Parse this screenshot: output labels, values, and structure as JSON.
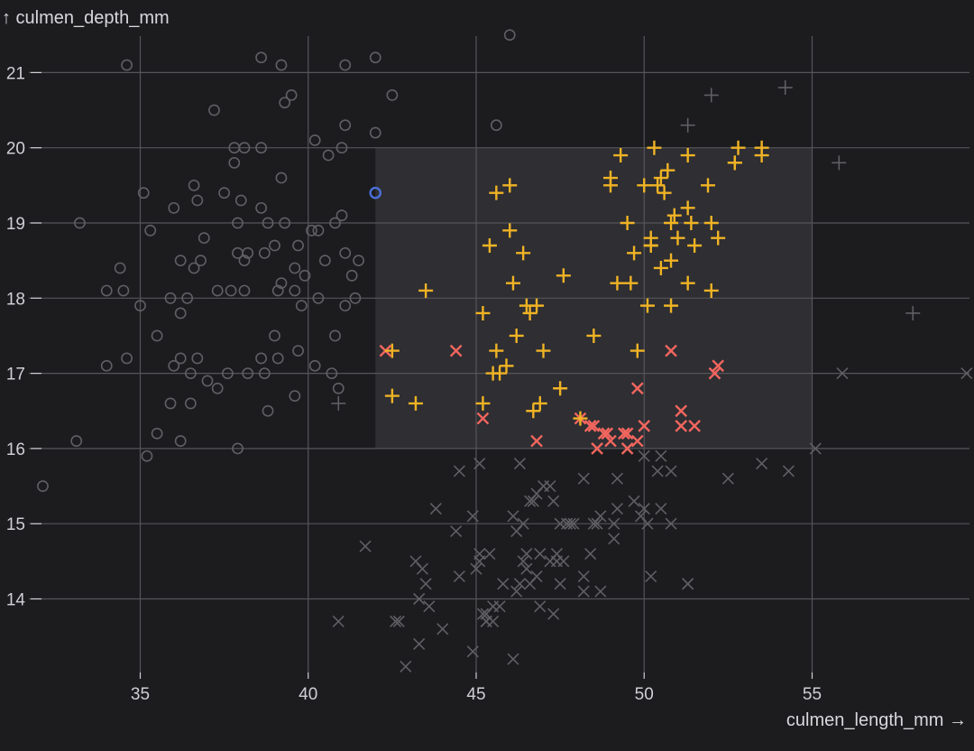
{
  "colors": {
    "background": "#1c1c1f",
    "grid": "#55555a",
    "tick": "#cfcfd4",
    "selection": "#2e2e33",
    "dim_mark": "#5f5f64",
    "Adelie": "#4a6fd6",
    "Gentoo": "#f0b324",
    "Chinstrap": "#f2665e"
  },
  "chart_data": {
    "type": "scatter",
    "xlabel": "culmen_length_mm →",
    "ylabel": "↑ culmen_depth_mm",
    "xlim": [
      31.8,
      60
    ],
    "ylim": [
      13,
      21.5
    ],
    "x_ticks": [
      35,
      40,
      45,
      50,
      55
    ],
    "y_ticks": [
      14,
      15,
      16,
      17,
      18,
      19,
      20,
      21
    ],
    "grid": true,
    "brush": {
      "x": [
        42,
        55
      ],
      "y": [
        16,
        20
      ]
    },
    "symbol_by": {
      "Adelie": "circle",
      "Gentoo": "plus",
      "Chinstrap": "cross"
    },
    "series": [
      {
        "symbol": "circle",
        "points": [
          [
            46.0,
            21.5
          ],
          [
            34.6,
            21.1
          ],
          [
            38.6,
            21.2
          ],
          [
            39.2,
            21.1
          ],
          [
            41.1,
            21.1
          ],
          [
            42.0,
            21.2
          ],
          [
            39.5,
            20.7
          ],
          [
            42.5,
            20.7
          ],
          [
            39.3,
            20.6
          ],
          [
            37.2,
            20.5
          ],
          [
            40.6,
            19.9
          ],
          [
            41.1,
            20.3
          ],
          [
            45.6,
            20.3
          ],
          [
            42.0,
            20.2
          ],
          [
            40.2,
            20.1
          ],
          [
            37.8,
            20.0
          ],
          [
            38.1,
            20.0
          ],
          [
            38.6,
            20.0
          ],
          [
            41.0,
            20.0
          ],
          [
            37.8,
            19.8
          ],
          [
            35.1,
            19.4
          ],
          [
            36.6,
            19.5
          ],
          [
            39.2,
            19.6
          ],
          [
            42.0,
            19.4
          ],
          [
            37.5,
            19.4
          ],
          [
            36.7,
            19.3
          ],
          [
            38.0,
            19.3
          ],
          [
            36.0,
            19.2
          ],
          [
            38.6,
            19.2
          ],
          [
            33.2,
            19.0
          ],
          [
            35.3,
            18.9
          ],
          [
            39.3,
            19.0
          ],
          [
            40.3,
            18.9
          ],
          [
            37.9,
            19.0
          ],
          [
            38.8,
            19.0
          ],
          [
            40.8,
            19.0
          ],
          [
            41.0,
            19.1
          ],
          [
            40.1,
            18.9
          ],
          [
            36.2,
            18.5
          ],
          [
            36.8,
            18.5
          ],
          [
            36.9,
            18.8
          ],
          [
            38.2,
            18.6
          ],
          [
            39.0,
            18.7
          ],
          [
            39.7,
            18.7
          ],
          [
            34.4,
            18.4
          ],
          [
            36.6,
            18.4
          ],
          [
            38.1,
            18.5
          ],
          [
            38.7,
            18.6
          ],
          [
            39.6,
            18.4
          ],
          [
            40.5,
            18.5
          ],
          [
            41.1,
            18.6
          ],
          [
            35.9,
            18.0
          ],
          [
            36.2,
            17.8
          ],
          [
            37.3,
            18.1
          ],
          [
            38.1,
            18.1
          ],
          [
            39.6,
            18.1
          ],
          [
            41.4,
            18.0
          ],
          [
            34.0,
            18.1
          ],
          [
            34.5,
            18.1
          ],
          [
            36.4,
            18.0
          ],
          [
            37.7,
            18.1
          ],
          [
            39.8,
            17.9
          ],
          [
            40.3,
            18.0
          ],
          [
            41.1,
            17.9
          ],
          [
            32.1,
            15.5
          ],
          [
            33.1,
            16.1
          ],
          [
            34.6,
            17.2
          ],
          [
            34.0,
            17.1
          ],
          [
            35.0,
            17.9
          ],
          [
            35.5,
            17.5
          ],
          [
            36.0,
            17.1
          ],
          [
            36.2,
            17.2
          ],
          [
            36.5,
            17.0
          ],
          [
            37.0,
            16.9
          ],
          [
            37.3,
            16.8
          ],
          [
            36.7,
            17.2
          ],
          [
            38.2,
            17.0
          ],
          [
            38.7,
            17.0
          ],
          [
            39.1,
            17.2
          ],
          [
            39.7,
            17.3
          ],
          [
            40.2,
            17.1
          ],
          [
            40.7,
            17.0
          ],
          [
            40.9,
            16.8
          ],
          [
            35.9,
            16.6
          ],
          [
            36.5,
            16.6
          ],
          [
            37.6,
            17.0
          ],
          [
            39.6,
            16.7
          ],
          [
            35.5,
            16.2
          ],
          [
            36.2,
            16.1
          ],
          [
            35.2,
            15.9
          ],
          [
            37.9,
            16.0
          ],
          [
            38.8,
            16.5
          ],
          [
            38.6,
            17.2
          ],
          [
            39.0,
            17.5
          ],
          [
            40.8,
            17.5
          ],
          [
            41.3,
            18.3
          ],
          [
            39.2,
            18.2
          ],
          [
            37.9,
            18.6
          ],
          [
            41.5,
            18.5
          ],
          [
            39.9,
            18.3
          ],
          [
            39.1,
            18.1
          ]
        ]
      },
      {
        "symbol": "cross",
        "points": [
          [
            42.3,
            17.3
          ],
          [
            44.4,
            17.3
          ],
          [
            45.2,
            16.4
          ],
          [
            46.8,
            16.1
          ],
          [
            48.1,
            16.4
          ],
          [
            48.5,
            16.3
          ],
          [
            48.6,
            16.0
          ],
          [
            48.9,
            16.2
          ],
          [
            49.0,
            16.1
          ],
          [
            49.4,
            16.2
          ],
          [
            49.5,
            16.0
          ],
          [
            49.8,
            16.1
          ],
          [
            50.0,
            16.3
          ],
          [
            50.8,
            17.3
          ],
          [
            49.8,
            16.8
          ],
          [
            51.1,
            16.5
          ],
          [
            51.1,
            16.3
          ],
          [
            51.5,
            16.3
          ],
          [
            52.2,
            17.1
          ],
          [
            52.1,
            17.0
          ],
          [
            43.3,
            13.4
          ],
          [
            45.1,
            14.5
          ],
          [
            46.1,
            13.2
          ],
          [
            47.3,
            15.3
          ],
          [
            47.2,
            14.5
          ],
          [
            45.5,
            13.7
          ],
          [
            46.2,
            14.9
          ],
          [
            44.9,
            13.3
          ],
          [
            46.5,
            14.6
          ],
          [
            49.1,
            14.8
          ],
          [
            48.4,
            14.6
          ],
          [
            50.5,
            15.9
          ],
          [
            49.2,
            15.2
          ],
          [
            46.9,
            14.6
          ],
          [
            47.5,
            15.0
          ],
          [
            48.7,
            14.1
          ],
          [
            50.0,
            15.2
          ],
          [
            47.6,
            14.5
          ],
          [
            46.6,
            14.2
          ],
          [
            50.2,
            14.3
          ],
          [
            45.8,
            14.2
          ],
          [
            48.6,
            15.0
          ],
          [
            47.7,
            15.0
          ],
          [
            48.2,
            14.3
          ],
          [
            43.6,
            13.9
          ],
          [
            45.5,
            13.9
          ],
          [
            46.4,
            15.0
          ],
          [
            45.1,
            15.8
          ],
          [
            47.8,
            15.0
          ],
          [
            46.8,
            15.4
          ],
          [
            49.5,
            16.2
          ],
          [
            44.5,
            15.7
          ],
          [
            43.2,
            14.5
          ],
          [
            46.3,
            15.8
          ],
          [
            47.3,
            13.8
          ],
          [
            50.1,
            15.0
          ],
          [
            44.4,
            14.9
          ],
          [
            48.7,
            15.1
          ],
          [
            49.2,
            15.6
          ],
          [
            46.4,
            14.5
          ],
          [
            48.5,
            15.0
          ],
          [
            47.4,
            14.6
          ],
          [
            46.5,
            14.4
          ],
          [
            50.5,
            15.2
          ],
          [
            45.0,
            14.4
          ],
          [
            45.3,
            13.8
          ],
          [
            47.5,
            14.2
          ],
          [
            46.2,
            14.1
          ],
          [
            48.2,
            15.6
          ],
          [
            45.7,
            13.9
          ],
          [
            44.5,
            14.3
          ],
          [
            46.1,
            15.1
          ],
          [
            48.2,
            14.1
          ],
          [
            43.5,
            14.2
          ],
          [
            47.0,
            15.5
          ],
          [
            50.0,
            15.9
          ],
          [
            45.2,
            13.8
          ],
          [
            46.7,
            15.3
          ],
          [
            40.9,
            13.7
          ],
          [
            42.6,
            13.7
          ],
          [
            41.7,
            14.7
          ],
          [
            43.3,
            14.0
          ],
          [
            44.0,
            13.6
          ],
          [
            43.4,
            14.4
          ],
          [
            42.7,
            13.7
          ],
          [
            43.8,
            15.2
          ],
          [
            44.9,
            15.1
          ],
          [
            46.6,
            15.3
          ],
          [
            49.9,
            15.1
          ],
          [
            50.8,
            15.7
          ],
          [
            51.3,
            14.2
          ],
          [
            52.5,
            15.6
          ],
          [
            53.5,
            15.8
          ],
          [
            54.3,
            15.7
          ],
          [
            55.1,
            16.0
          ],
          [
            45.4,
            14.6
          ],
          [
            48.8,
            16.2
          ],
          [
            47.2,
            15.5
          ],
          [
            46.8,
            14.3
          ],
          [
            45.3,
            13.7
          ],
          [
            50.4,
            15.7
          ],
          [
            49.7,
            15.3
          ],
          [
            46.3,
            14.2
          ],
          [
            47.9,
            15.0
          ],
          [
            45.1,
            14.6
          ],
          [
            46.9,
            13.9
          ],
          [
            50.8,
            15.0
          ],
          [
            49.1,
            15.0
          ],
          [
            45.3,
            13.7
          ],
          [
            47.4,
            14.5
          ],
          [
            42.9,
            13.1
          ],
          [
            51.3,
            14.2
          ],
          [
            48.4,
            16.3
          ],
          [
            55.9,
            17.0
          ],
          [
            59.6,
            17.0
          ]
        ]
      },
      {
        "symbol": "plus",
        "points": [
          [
            46.0,
            19.5
          ],
          [
            52.0,
            20.7
          ],
          [
            54.2,
            20.8
          ],
          [
            53.5,
            20.0
          ],
          [
            51.3,
            20.3
          ],
          [
            52.7,
            19.8
          ],
          [
            55.8,
            19.8
          ],
          [
            58.0,
            17.8
          ],
          [
            40.9,
            16.6
          ],
          [
            42.5,
            17.3
          ],
          [
            42.5,
            16.7
          ],
          [
            43.2,
            16.6
          ],
          [
            43.5,
            18.1
          ],
          [
            45.2,
            17.8
          ],
          [
            45.2,
            16.6
          ],
          [
            45.4,
            18.7
          ],
          [
            45.5,
            17.0
          ],
          [
            45.6,
            19.4
          ],
          [
            45.6,
            17.3
          ],
          [
            45.7,
            17.0
          ],
          [
            45.9,
            17.1
          ],
          [
            46.1,
            18.2
          ],
          [
            46.2,
            17.5
          ],
          [
            46.4,
            18.6
          ],
          [
            46.5,
            17.9
          ],
          [
            46.6,
            17.8
          ],
          [
            46.8,
            17.9
          ],
          [
            46.7,
            16.5
          ],
          [
            46.9,
            16.6
          ],
          [
            47.0,
            17.3
          ],
          [
            46.0,
            18.9
          ],
          [
            47.5,
            16.8
          ],
          [
            47.6,
            18.3
          ],
          [
            48.1,
            16.4
          ],
          [
            48.5,
            17.5
          ],
          [
            49.0,
            19.5
          ],
          [
            49.0,
            19.6
          ],
          [
            49.2,
            18.2
          ],
          [
            49.3,
            19.9
          ],
          [
            49.5,
            19.0
          ],
          [
            49.6,
            18.2
          ],
          [
            49.7,
            18.6
          ],
          [
            49.8,
            17.3
          ],
          [
            50.0,
            19.5
          ],
          [
            50.1,
            17.9
          ],
          [
            50.2,
            18.7
          ],
          [
            50.2,
            18.8
          ],
          [
            50.3,
            20.0
          ],
          [
            50.4,
            19.5
          ],
          [
            50.5,
            18.4
          ],
          [
            50.5,
            19.6
          ],
          [
            50.6,
            19.4
          ],
          [
            50.7,
            19.7
          ],
          [
            50.8,
            18.5
          ],
          [
            50.8,
            19.0
          ],
          [
            50.8,
            17.9
          ],
          [
            50.9,
            19.1
          ],
          [
            51.0,
            18.8
          ],
          [
            51.3,
            19.9
          ],
          [
            51.3,
            18.2
          ],
          [
            51.4,
            19.0
          ],
          [
            51.3,
            19.2
          ],
          [
            51.5,
            18.7
          ],
          [
            52.0,
            18.1
          ],
          [
            52.0,
            19.0
          ],
          [
            51.9,
            19.5
          ],
          [
            52.2,
            18.8
          ],
          [
            52.8,
            20.0
          ],
          [
            53.5,
            19.9
          ],
          [
            52.7,
            19.8
          ],
          [
            50.2,
            18.7
          ]
        ]
      }
    ]
  }
}
